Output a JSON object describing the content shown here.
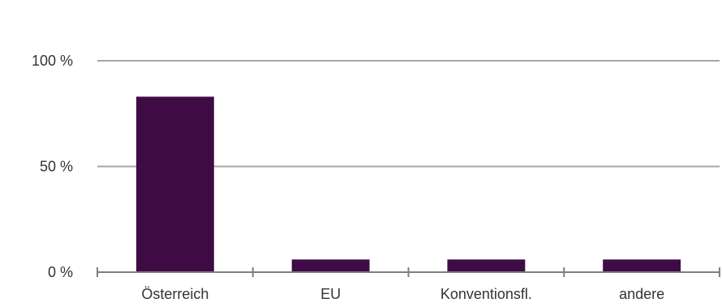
{
  "chart_data": {
    "type": "bar",
    "categories": [
      "Österreich",
      "EU",
      "Konventionsfl.",
      "andere"
    ],
    "values": [
      83,
      6,
      6,
      6
    ],
    "ylim": [
      0,
      100
    ],
    "yticks": [
      0,
      50,
      100
    ],
    "ytick_labels": [
      "0 %",
      "50 %",
      "100 %"
    ],
    "grid": true,
    "legend": "none",
    "bar_color": "#3f0b45",
    "grid_color": "#a6a6a6",
    "axis_color": "#7f7f7f"
  }
}
